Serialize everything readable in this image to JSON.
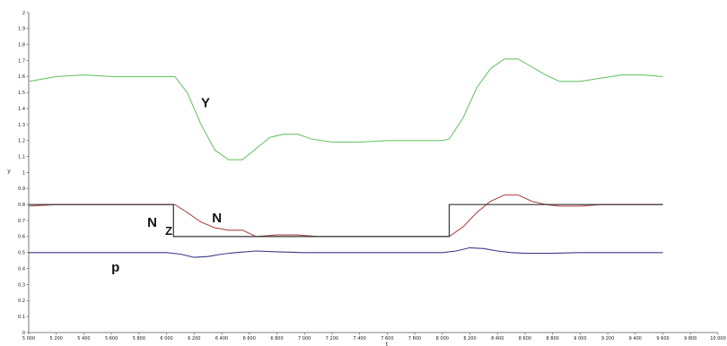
{
  "chart_data": {
    "type": "line",
    "title": "",
    "xlabel": "t",
    "ylabel": "y",
    "xlim": [
      5000,
      10000
    ],
    "ylim": [
      0,
      2
    ],
    "xticks": [
      5000,
      5200,
      5400,
      5600,
      5800,
      6000,
      6200,
      6400,
      6600,
      6800,
      7000,
      7200,
      7400,
      7600,
      7800,
      8000,
      8200,
      8400,
      8600,
      8800,
      9000,
      9200,
      9400,
      9600,
      9800,
      10000
    ],
    "xtick_labels": [
      "5 000",
      "5 200",
      "5 400",
      "5 600",
      "5 800",
      "6 000",
      "6 200",
      "6 400",
      "6 600",
      "6 800",
      "7 000",
      "7 200",
      "7 400",
      "7 600",
      "7 800",
      "8 000",
      "8 200",
      "8 400",
      "8 600",
      "8 800",
      "9 000",
      "9 200",
      "9 400",
      "9 600",
      "9 800",
      "10 000"
    ],
    "yticks": [
      0,
      0.1,
      0.2,
      0.3,
      0.4,
      0.5,
      0.6,
      0.7,
      0.8,
      0.9,
      1,
      1.1,
      1.2,
      1.3,
      1.4,
      1.5,
      1.6,
      1.7,
      1.8,
      1.9,
      2
    ],
    "ytick_labels": [
      "0",
      "0.1",
      "0.2",
      "0.3",
      "0.4",
      "0.5",
      "0.6",
      "0.7",
      "0.8",
      "0.9",
      "1",
      "1.1",
      "1.2",
      "1.3",
      "1.4",
      "1.5",
      "1.6",
      "1.7",
      "1.8",
      "1.9",
      "2"
    ],
    "grid": false,
    "legend": "none",
    "series": [
      {
        "name": "Y",
        "color": "#6cc66c",
        "x": [
          5000,
          5200,
          5400,
          5600,
          5800,
          6000,
          6060,
          6150,
          6250,
          6350,
          6450,
          6550,
          6650,
          6750,
          6850,
          6950,
          7050,
          7200,
          7400,
          7600,
          7800,
          8000,
          8050,
          8150,
          8250,
          8350,
          8450,
          8550,
          8650,
          8750,
          8850,
          9000,
          9150,
          9300,
          9450,
          9600
        ],
        "y": [
          1.57,
          1.6,
          1.61,
          1.6,
          1.6,
          1.6,
          1.6,
          1.5,
          1.3,
          1.14,
          1.08,
          1.08,
          1.15,
          1.22,
          1.24,
          1.24,
          1.21,
          1.19,
          1.19,
          1.2,
          1.2,
          1.2,
          1.21,
          1.34,
          1.53,
          1.65,
          1.71,
          1.71,
          1.66,
          1.61,
          1.57,
          1.57,
          1.59,
          1.61,
          1.61,
          1.6
        ]
      },
      {
        "name": "N",
        "color": "#b04848",
        "x": [
          5000,
          5200,
          5400,
          5600,
          5800,
          6000,
          6060,
          6150,
          6250,
          6350,
          6450,
          6550,
          6650,
          6800,
          6950,
          7100,
          7300,
          7500,
          7700,
          7900,
          8050,
          8150,
          8250,
          8350,
          8450,
          8550,
          8650,
          8750,
          8850,
          9000,
          9150,
          9300,
          9450,
          9600
        ],
        "y": [
          0.79,
          0.8,
          0.8,
          0.8,
          0.8,
          0.8,
          0.8,
          0.75,
          0.69,
          0.655,
          0.64,
          0.64,
          0.6,
          0.61,
          0.61,
          0.6,
          0.6,
          0.6,
          0.6,
          0.6,
          0.6,
          0.66,
          0.75,
          0.82,
          0.86,
          0.86,
          0.82,
          0.8,
          0.79,
          0.79,
          0.8,
          0.8,
          0.8,
          0.8
        ]
      },
      {
        "name": "Nz",
        "color": "#333333",
        "x": [
          5000,
          6050,
          6050,
          8050,
          8050,
          9600
        ],
        "y": [
          0.8,
          0.8,
          0.6,
          0.6,
          0.8,
          0.8
        ]
      },
      {
        "name": "p",
        "color": "#3b3b8c",
        "x": [
          5000,
          5200,
          5400,
          5600,
          5800,
          6000,
          6100,
          6200,
          6300,
          6400,
          6500,
          6650,
          6800,
          7000,
          7400,
          7800,
          8000,
          8100,
          8200,
          8300,
          8400,
          8500,
          8600,
          8800,
          9000,
          9200,
          9400,
          9600
        ],
        "y": [
          0.5,
          0.5,
          0.5,
          0.5,
          0.5,
          0.5,
          0.49,
          0.47,
          0.475,
          0.49,
          0.5,
          0.51,
          0.505,
          0.5,
          0.5,
          0.5,
          0.5,
          0.51,
          0.53,
          0.525,
          0.51,
          0.5,
          0.495,
          0.495,
          0.5,
          0.5,
          0.5,
          0.5
        ]
      }
    ],
    "annotations": [
      {
        "text": "Y",
        "x": 6250,
        "y": 1.41
      },
      {
        "text": "N",
        "x": 6330,
        "y": 0.69
      },
      {
        "text": "N",
        "x": 5860,
        "y": 0.66
      },
      {
        "text": "Z",
        "x": 5990,
        "y": 0.61
      },
      {
        "text": "p",
        "x": 5600,
        "y": 0.38
      }
    ]
  }
}
